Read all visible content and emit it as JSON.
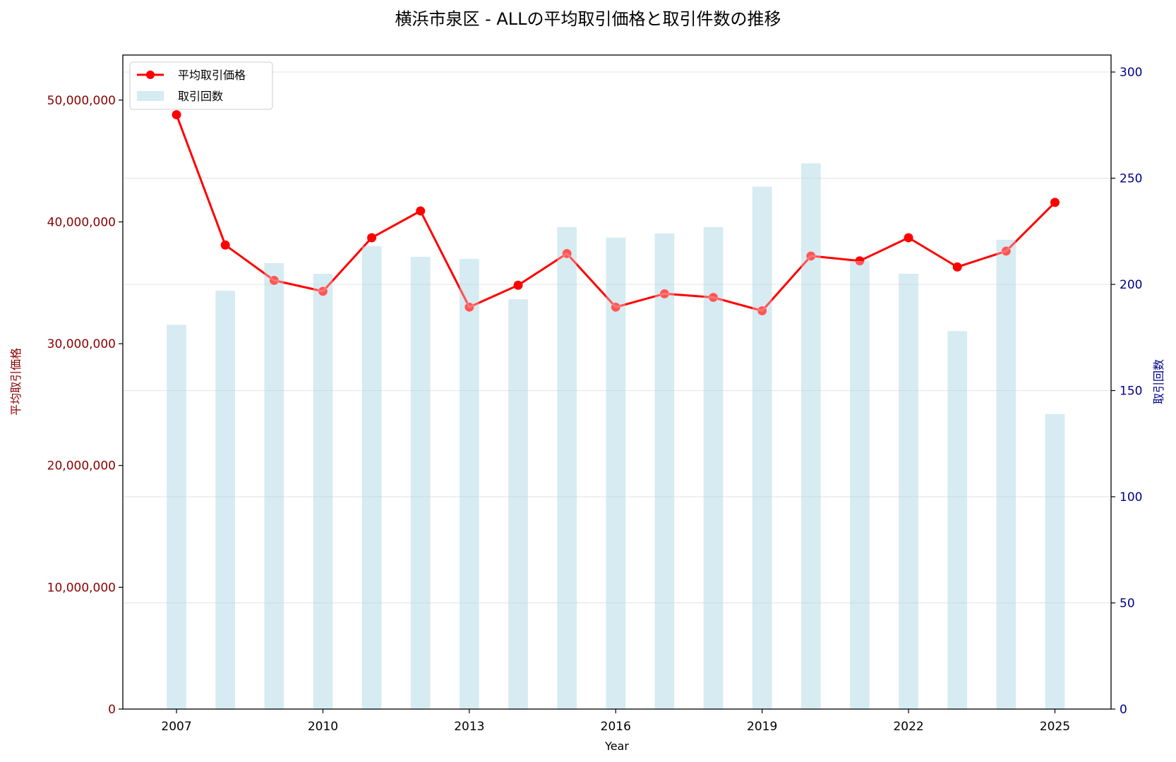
{
  "title": "横浜市泉区 - ALLの平均取引価格と取引件数の推移",
  "chart_data": {
    "type": "bar+line",
    "title": "横浜市泉区 - ALLの平均取引価格と取引件数の推移",
    "xlabel": "Year",
    "ylabel_left": "平均取引価格",
    "ylabel_right": "取引回数",
    "x": [
      2007,
      2008,
      2009,
      2010,
      2011,
      2012,
      2013,
      2014,
      2015,
      2016,
      2017,
      2018,
      2019,
      2020,
      2021,
      2022,
      2023,
      2024,
      2025
    ],
    "x_ticks": [
      "2007",
      "2010",
      "2013",
      "2016",
      "2019",
      "2022",
      "2025"
    ],
    "x_range": [
      2005.9,
      2026.15
    ],
    "y_left_range": [
      0,
      53700000
    ],
    "y_left_ticks": [
      "0",
      "10,000,000",
      "20,000,000",
      "30,000,000",
      "40,000,000",
      "50,000,000"
    ],
    "y_right_range": [
      0,
      308
    ],
    "y_right_ticks": [
      "0",
      "50",
      "100",
      "150",
      "200",
      "250",
      "300"
    ],
    "grid": true,
    "legend_position": "top-left",
    "series": [
      {
        "name": "平均取引価格",
        "type": "line",
        "axis": "left",
        "color": "#ff0000",
        "values": [
          48800000,
          38100000,
          35200000,
          34300000,
          38700000,
          40900000,
          33000000,
          34800000,
          37400000,
          33000000,
          34100000,
          33800000,
          32700000,
          37200000,
          36800000,
          38700000,
          36300000,
          37600000,
          41600000
        ]
      },
      {
        "name": "取引回数",
        "type": "bar",
        "axis": "right",
        "color": "#add8e6",
        "values": [
          181,
          197,
          210,
          205,
          218,
          213,
          212,
          193,
          227,
          222,
          224,
          227,
          246,
          257,
          211,
          205,
          178,
          221,
          139
        ]
      }
    ]
  }
}
